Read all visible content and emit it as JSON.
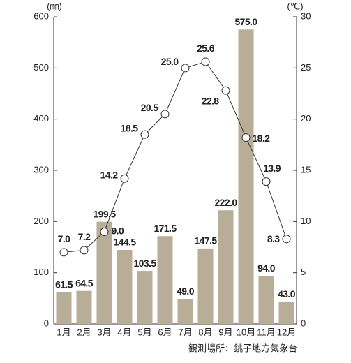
{
  "chart_data": {
    "type": "bar",
    "categories": [
      "1月",
      "2月",
      "3月",
      "4月",
      "5月",
      "6月",
      "7月",
      "8月",
      "9月",
      "10月",
      "11月",
      "12月"
    ],
    "series": [
      {
        "type": "bar",
        "color": "#b8ad96",
        "values": [
          61.5,
          64.5,
          199.5,
          144.5,
          103.5,
          171.5,
          49.0,
          147.5,
          222.0,
          575.0,
          94.0,
          43.0
        ],
        "value_labels": [
          "61.5",
          "64.5",
          "199.5",
          "144.5",
          "103.5",
          "171.5",
          "49.0",
          "147.5",
          "222.0",
          "575.0",
          "94.0",
          "43.0"
        ]
      },
      {
        "type": "line",
        "axis": "y2",
        "color": "#333333",
        "values": [
          7.0,
          7.2,
          9.0,
          14.2,
          18.5,
          20.5,
          25.0,
          25.6,
          22.8,
          18.2,
          13.9,
          8.3
        ],
        "value_labels": [
          "7.0",
          "7.2",
          "9.0",
          "14.2",
          "18.5",
          "20.5",
          "25.0",
          "25.6",
          "22.8",
          "18.2",
          "13.9",
          "8.3"
        ]
      }
    ],
    "y_label": "(㎜)",
    "y2_label": "(℃)",
    "ylim": [
      0,
      600
    ],
    "yticks": [
      0,
      100,
      200,
      300,
      400,
      500,
      600
    ],
    "y2lim": [
      0,
      30
    ],
    "y2ticks": [
      0,
      5,
      10,
      15,
      20,
      25,
      30
    ],
    "note": "観測場所：銚子地方気象台"
  }
}
